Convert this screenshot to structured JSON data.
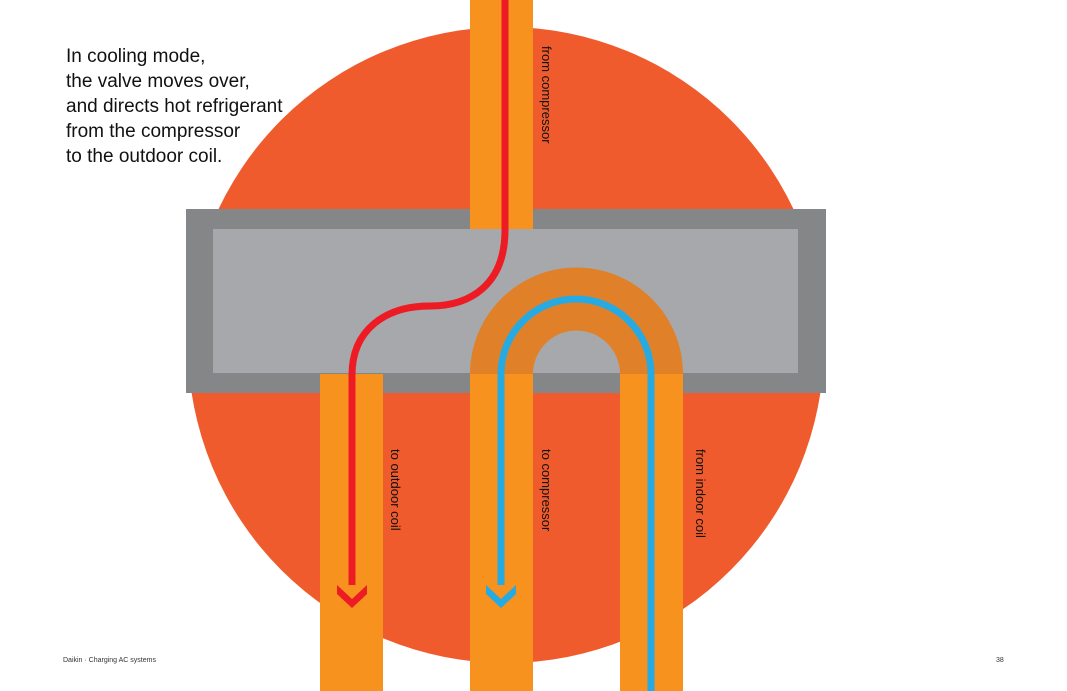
{
  "caption": {
    "lines": [
      "In cooling mode,",
      "the valve moves over,",
      "and directs hot refrigerant",
      "from the compressor",
      "to the outdoor coil."
    ]
  },
  "ports": {
    "from_compressor": "from compressor",
    "to_outdoor_coil": "to outdoor coil",
    "to_compressor": "to compressor",
    "from_indoor_coil": "from indoor coil"
  },
  "footer": {
    "left": "Daikin  ·  Charging AC systems",
    "page_number": "38"
  },
  "colors": {
    "background_circle": "#ef5b2c",
    "valve_body_outer": "#848688",
    "valve_body_inner": "#a6a8ab",
    "pipe": "#f7921e",
    "slider": "#e0812a",
    "hot_flow": "#ed1c24",
    "cold_flow": "#27aae1"
  }
}
